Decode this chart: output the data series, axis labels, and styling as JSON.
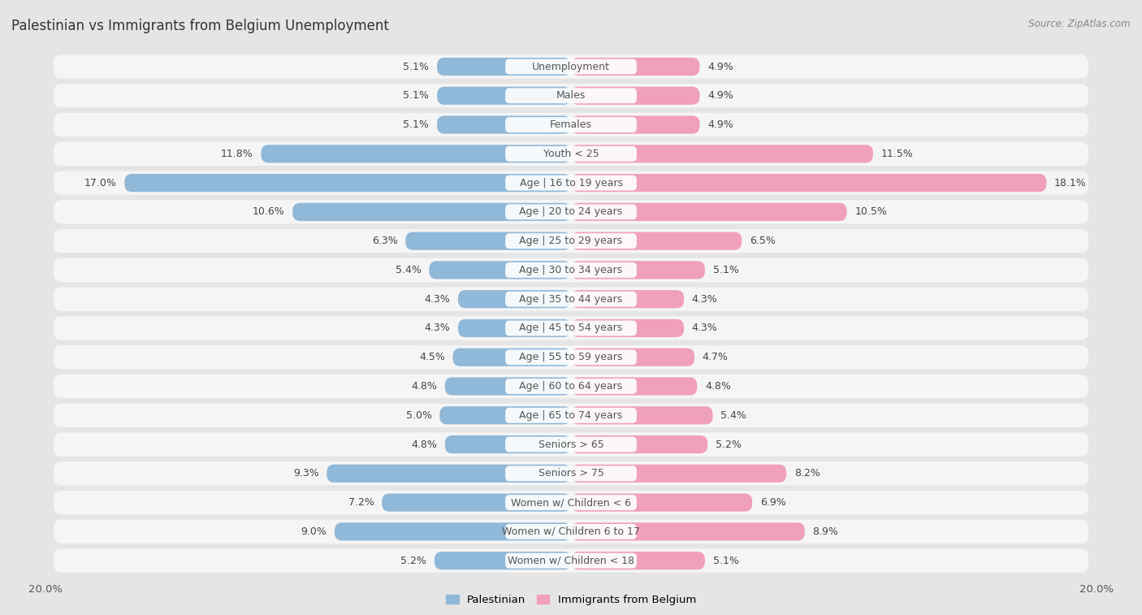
{
  "title": "Palestinian vs Immigrants from Belgium Unemployment",
  "source": "Source: ZipAtlas.com",
  "categories": [
    "Unemployment",
    "Males",
    "Females",
    "Youth < 25",
    "Age | 16 to 19 years",
    "Age | 20 to 24 years",
    "Age | 25 to 29 years",
    "Age | 30 to 34 years",
    "Age | 35 to 44 years",
    "Age | 45 to 54 years",
    "Age | 55 to 59 years",
    "Age | 60 to 64 years",
    "Age | 65 to 74 years",
    "Seniors > 65",
    "Seniors > 75",
    "Women w/ Children < 6",
    "Women w/ Children 6 to 17",
    "Women w/ Children < 18"
  ],
  "palestinian": [
    5.1,
    5.1,
    5.1,
    11.8,
    17.0,
    10.6,
    6.3,
    5.4,
    4.3,
    4.3,
    4.5,
    4.8,
    5.0,
    4.8,
    9.3,
    7.2,
    9.0,
    5.2
  ],
  "belgium": [
    4.9,
    4.9,
    4.9,
    11.5,
    18.1,
    10.5,
    6.5,
    5.1,
    4.3,
    4.3,
    4.7,
    4.8,
    5.4,
    5.2,
    8.2,
    6.9,
    8.9,
    5.1
  ],
  "palestinian_color": "#90b8d8",
  "belgium_color": "#f0a0b8",
  "background_color": "#e8e8e8",
  "row_bg_color": "#f0f0f0",
  "max_val": 20.0,
  "label_fontsize": 9.0,
  "title_fontsize": 12,
  "bar_height": 0.62
}
